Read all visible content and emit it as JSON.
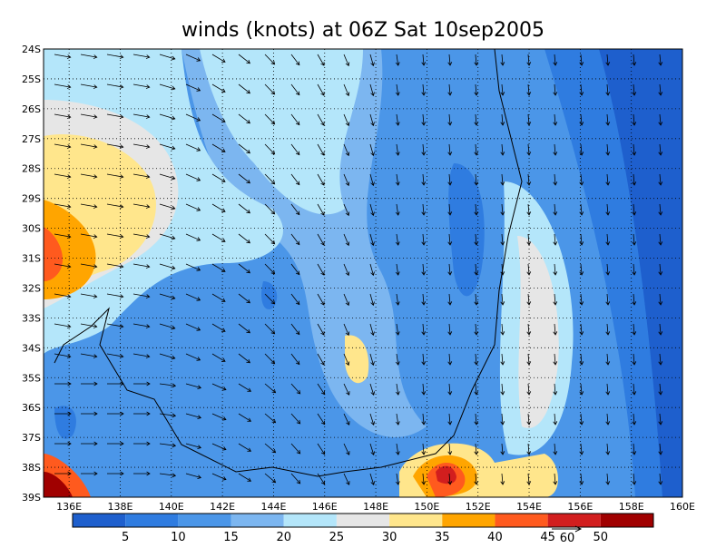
{
  "title": "winds (knots) at 06Z Sat 10sep2005",
  "lat_labels": [
    "24S",
    "25S",
    "26S",
    "27S",
    "28S",
    "29S",
    "30S",
    "31S",
    "32S",
    "33S",
    "34S",
    "35S",
    "36S",
    "37S",
    "38S",
    "39S"
  ],
  "lon_labels": [
    "136E",
    "138E",
    "140E",
    "142E",
    "144E",
    "146E",
    "148E",
    "150E",
    "152E",
    "154E",
    "156E",
    "158E",
    "160E"
  ],
  "colorbar": {
    "levels": [
      5,
      10,
      15,
      20,
      25,
      30,
      35,
      40,
      45,
      50
    ],
    "colors": [
      "#1e5fcd",
      "#2f7ce0",
      "#4b96e8",
      "#7cb6f0",
      "#b4e6fa",
      "#e6e6e6",
      "#ffe68c",
      "#ffa500",
      "#ff5a1e",
      "#d21e1e",
      "#a00000"
    ]
  },
  "vector_reference": "60"
}
